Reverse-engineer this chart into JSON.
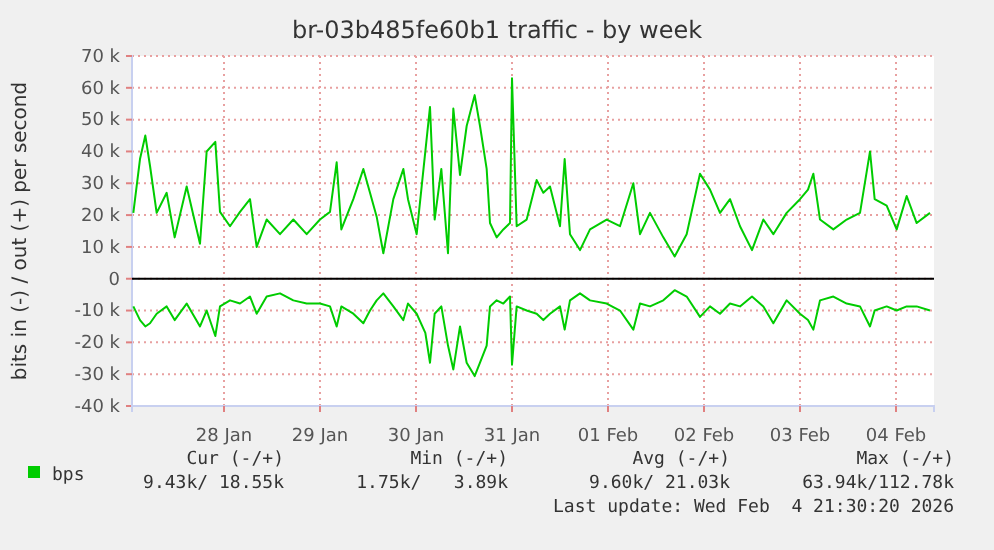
{
  "chart_data": {
    "type": "line",
    "title": "br-03b485fe60b1 traffic - by week",
    "ylabel": "bits in (-) / out (+) per second",
    "x": [
      "2026-01-27T01:20",
      "2026-01-27T03:00",
      "2026-01-27T04:20",
      "2026-01-27T05:30",
      "2026-01-27T07:10",
      "2026-01-27T09:40",
      "2026-01-27T11:40",
      "2026-01-27T14:40",
      "2026-01-27T18:00",
      "2026-01-27T19:40",
      "2026-01-27T21:50",
      "2026-01-27T23:00",
      "2026-01-28T01:30",
      "2026-01-28T04:00",
      "2026-01-28T06:30",
      "2026-01-28T08:10",
      "2026-01-28T10:40",
      "2026-01-28T14:00",
      "2026-01-28T17:20",
      "2026-01-28T20:40",
      "2026-01-29T00:00",
      "2026-01-29T02:30",
      "2026-01-29T04:10",
      "2026-01-29T05:20",
      "2026-01-29T08:20",
      "2026-01-29T10:50",
      "2026-01-29T12:30",
      "2026-01-29T14:10",
      "2026-01-29T15:50",
      "2026-01-29T18:20",
      "2026-01-29T20:50",
      "2026-01-29T22:00",
      "2026-01-30T00:10",
      "2026-01-30T02:20",
      "2026-01-30T03:30",
      "2026-01-30T04:40",
      "2026-01-30T06:20",
      "2026-01-30T08:00",
      "2026-01-30T09:20",
      "2026-01-30T11:00",
      "2026-01-30T12:40",
      "2026-01-30T14:40",
      "2026-01-30T16:00",
      "2026-01-30T17:40",
      "2026-01-30T18:30",
      "2026-01-30T20:10",
      "2026-01-30T21:50",
      "2026-01-30T23:30",
      "2026-01-31T00:00",
      "2026-01-31T01:10",
      "2026-01-31T03:40",
      "2026-01-31T06:10",
      "2026-01-31T07:50",
      "2026-01-31T09:30",
      "2026-01-31T12:00",
      "2026-01-31T13:10",
      "2026-01-31T14:30",
      "2026-01-31T17:00",
      "2026-01-31T19:30",
      "2026-01-31T23:40",
      "2026-02-01T03:00",
      "2026-02-01T06:20",
      "2026-02-01T08:00",
      "2026-02-01T10:30",
      "2026-02-01T13:50",
      "2026-02-01T16:40",
      "2026-02-01T19:40",
      "2026-02-01T23:00",
      "2026-02-02T01:30",
      "2026-02-02T04:00",
      "2026-02-02T06:30",
      "2026-02-02T09:00",
      "2026-02-02T12:00",
      "2026-02-02T14:50",
      "2026-02-02T17:20",
      "2026-02-02T20:40",
      "2026-02-03T00:00",
      "2026-02-03T02:00",
      "2026-02-03T03:20",
      "2026-02-03T05:00",
      "2026-02-03T08:20",
      "2026-02-03T11:40",
      "2026-02-03T15:00",
      "2026-02-03T17:30",
      "2026-02-03T18:40",
      "2026-02-03T21:40",
      "2026-02-04T00:10",
      "2026-02-04T02:40",
      "2026-02-04T05:10",
      "2026-02-04T08:30"
    ],
    "series": [
      {
        "name": "bps",
        "color": "#00cc00",
        "values": [
          20700,
          37600,
          45000,
          35500,
          20700,
          27000,
          13000,
          29000,
          11000,
          40000,
          43000,
          21000,
          16500,
          21000,
          25000,
          10000,
          18600,
          14000,
          18600,
          14000,
          18600,
          21000,
          36600,
          15500,
          25000,
          34500,
          27000,
          19500,
          8000,
          25000,
          34500,
          25000,
          14000,
          40000,
          54000,
          18600,
          34500,
          8000,
          53500,
          32600,
          48000,
          57700,
          48000,
          34500,
          17500,
          13000,
          15500,
          17500,
          63000,
          16500,
          18600,
          31000,
          27000,
          29000,
          16500,
          37600,
          14000,
          9000,
          15500,
          18600,
          16500,
          30000,
          14000,
          20700,
          13000,
          7000,
          14000,
          33000,
          28000,
          20700,
          25000,
          16500,
          9000,
          18600,
          14000,
          20700,
          25000,
          28000,
          33000,
          18600,
          15500,
          18600,
          20700,
          40000,
          25000,
          23000,
          15500,
          26000,
          17500,
          20700
        ]
      },
      {
        "color": "#00cc00",
        "values": [
          -8700,
          -13000,
          -15000,
          -14000,
          -11000,
          -8700,
          -13000,
          -7800,
          -15000,
          -10000,
          -18000,
          -8700,
          -6800,
          -7800,
          -5600,
          -11000,
          -5600,
          -4600,
          -6800,
          -7800,
          -7800,
          -8700,
          -15000,
          -8700,
          -11000,
          -14000,
          -10000,
          -6800,
          -4600,
          -8700,
          -13000,
          -7800,
          -11000,
          -17000,
          -26400,
          -11000,
          -8700,
          -21000,
          -28500,
          -15000,
          -26400,
          -30600,
          -26400,
          -21000,
          -8700,
          -6800,
          -7800,
          -5600,
          -27000,
          -8700,
          -10000,
          -11000,
          -13000,
          -11000,
          -8700,
          -16000,
          -6800,
          -4600,
          -6800,
          -7800,
          -10000,
          -16000,
          -7800,
          -8700,
          -6800,
          -3600,
          -5600,
          -12000,
          -8700,
          -11000,
          -7800,
          -8700,
          -5600,
          -8700,
          -14000,
          -6800,
          -11000,
          -13000,
          -16000,
          -6800,
          -5600,
          -7800,
          -8700,
          -15000,
          -10000,
          -8700,
          -10000,
          -8700,
          -8700,
          -10000
        ]
      }
    ],
    "xlim": [
      "2026-01-27T01:00",
      "2026-02-04T09:30"
    ],
    "xticks": [
      {
        "value": "2026-01-28",
        "label": "28 Jan"
      },
      {
        "value": "2026-01-29",
        "label": "29 Jan"
      },
      {
        "value": "2026-01-30",
        "label": "30 Jan"
      },
      {
        "value": "2026-01-31",
        "label": "31 Jan"
      },
      {
        "value": "2026-02-01",
        "label": "01 Feb"
      },
      {
        "value": "2026-02-02",
        "label": "02 Feb"
      },
      {
        "value": "2026-02-03",
        "label": "03 Feb"
      },
      {
        "value": "2026-02-04",
        "label": "04 Feb"
      }
    ],
    "ylim": [
      -40000,
      70000
    ],
    "yticks": [
      {
        "value": -40000,
        "label": "-40 k"
      },
      {
        "value": -30000,
        "label": "-30 k"
      },
      {
        "value": -20000,
        "label": "-20 k"
      },
      {
        "value": -10000,
        "label": "-10 k"
      },
      0,
      {
        "value": 10000,
        "label": "10 k"
      },
      {
        "value": 20000,
        "label": "20 k"
      },
      {
        "value": 30000,
        "label": "30 k"
      },
      {
        "value": 40000,
        "label": "40 k"
      },
      {
        "value": 50000,
        "label": "50 k"
      },
      {
        "value": 60000,
        "label": "60 k"
      },
      {
        "value": 70000,
        "label": "70 k"
      }
    ],
    "ref_lines": [
      {
        "axis": "y",
        "value": 0,
        "color": "#000000"
      }
    ],
    "grid": true,
    "legend": "bottom left",
    "marker": "none",
    "line_style": "solid",
    "annotations": [
      "Cur (-/+)",
      "Min (-/+)",
      "Avg (-/+)",
      "Max (-/+)",
      "9.43k/ 18.55k",
      "1.75k/   3.89k",
      "9.60k/ 21.03k",
      "63.94k/112.78k",
      "Last update: Wed Feb  4 21:30:20 2026"
    ]
  }
}
